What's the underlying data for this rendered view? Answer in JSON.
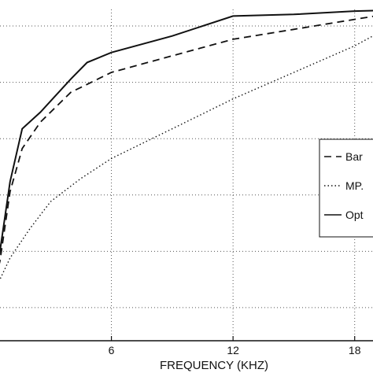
{
  "chart_data": {
    "type": "line",
    "xlabel": "FREQUENCY (KHZ)",
    "xticks": [
      6,
      12,
      18
    ],
    "xlim": [
      0,
      21
    ],
    "ylim": [
      0,
      1
    ],
    "grid": true,
    "legend_placement": "right",
    "series": [
      {
        "name": "Bar",
        "style": "dashed",
        "x": [
          0,
          0.5,
          1.0,
          1.6,
          2.5,
          4.0,
          6.0,
          9.0,
          12.0,
          15.0,
          18.0,
          21.0
        ],
        "y": [
          0.12,
          0.24,
          0.45,
          0.58,
          0.66,
          0.75,
          0.81,
          0.86,
          0.91,
          0.94,
          0.97,
          1.0
        ]
      },
      {
        "name": "MP.",
        "style": "dotted",
        "x": [
          0,
          1.0,
          2.0,
          3.0,
          4.5,
          6.0,
          9.0,
          12.0,
          15.0,
          18.0,
          21.0
        ],
        "y": [
          0.12,
          0.25,
          0.34,
          0.42,
          0.49,
          0.55,
          0.64,
          0.73,
          0.81,
          0.89,
          0.99
        ]
      },
      {
        "name": "Opt",
        "style": "solid",
        "x": [
          0,
          0.5,
          1.0,
          1.6,
          2.5,
          4.0,
          4.8,
          6.0,
          9.0,
          12.0,
          15.0,
          18.0,
          21.0
        ],
        "y": [
          0.12,
          0.27,
          0.48,
          0.64,
          0.69,
          0.79,
          0.84,
          0.87,
          0.92,
          0.98,
          0.985,
          0.995,
          1.0
        ]
      }
    ],
    "line_color": "#111111",
    "grid_color": "#555555"
  }
}
